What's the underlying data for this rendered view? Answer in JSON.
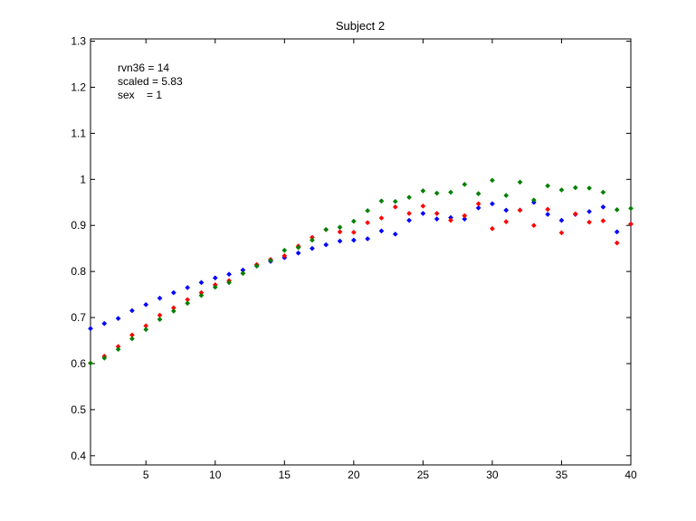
{
  "chart_data": {
    "type": "scatter",
    "title": "Subject 2",
    "xlabel": "",
    "ylabel": "",
    "xlim": [
      1,
      40
    ],
    "ylim": [
      0.38,
      1.305
    ],
    "xticks": [
      5,
      10,
      15,
      20,
      25,
      30,
      35,
      40
    ],
    "yticks": [
      0.4,
      0.5,
      0.6,
      0.7,
      0.8,
      0.9,
      1,
      1.1,
      1.2,
      1.3
    ],
    "ytick_labels": [
      "0.4",
      "0.5",
      "0.6",
      "0.7",
      "0.8",
      "0.9",
      "1",
      "1.1",
      "1.2",
      "1.3"
    ],
    "grid": false,
    "annotations": [
      "rvn36 = 14",
      "scaled = 5.83",
      "sex    = 1"
    ],
    "x": [
      1,
      2,
      3,
      4,
      5,
      6,
      7,
      8,
      9,
      10,
      11,
      12,
      13,
      14,
      15,
      16,
      17,
      18,
      19,
      20,
      21,
      22,
      23,
      24,
      25,
      26,
      27,
      28,
      29,
      30,
      31,
      32,
      33,
      34,
      35,
      36,
      37,
      38,
      39,
      40
    ],
    "series": [
      {
        "color": "#0000ff",
        "values": [
          0.676,
          0.687,
          0.698,
          0.715,
          0.728,
          0.742,
          0.754,
          0.765,
          0.776,
          0.786,
          0.794,
          0.803,
          0.812,
          0.822,
          0.83,
          0.84,
          0.85,
          0.858,
          0.866,
          0.868,
          0.871,
          0.888,
          0.881,
          0.911,
          0.926,
          0.914,
          0.917,
          0.914,
          0.938,
          0.947,
          0.933,
          0.933,
          0.95,
          0.924,
          0.911,
          0.924,
          0.93,
          0.94,
          0.886,
          0.903
        ]
      },
      {
        "color": "#ff0000",
        "values": [
          0.601,
          0.616,
          0.637,
          0.662,
          0.682,
          0.705,
          0.721,
          0.739,
          0.754,
          0.771,
          0.78,
          0.796,
          0.815,
          0.826,
          0.834,
          0.855,
          0.874,
          0.891,
          0.886,
          0.885,
          0.906,
          0.916,
          0.94,
          0.926,
          0.942,
          0.926,
          0.911,
          0.921,
          0.947,
          0.893,
          0.908,
          0.933,
          0.9,
          0.935,
          0.884,
          0.925,
          0.907,
          0.91,
          0.862,
          0.903
        ]
      },
      {
        "color": "#008000",
        "values": [
          0.601,
          0.612,
          0.631,
          0.654,
          0.674,
          0.696,
          0.714,
          0.731,
          0.748,
          0.766,
          0.776,
          0.796,
          0.812,
          0.824,
          0.846,
          0.852,
          0.868,
          0.891,
          0.896,
          0.909,
          0.932,
          0.953,
          0.952,
          0.961,
          0.975,
          0.97,
          0.972,
          0.989,
          0.969,
          0.998,
          0.965,
          0.994,
          0.955,
          0.986,
          0.977,
          0.982,
          0.981,
          0.972,
          0.934,
          0.937
        ]
      }
    ]
  }
}
